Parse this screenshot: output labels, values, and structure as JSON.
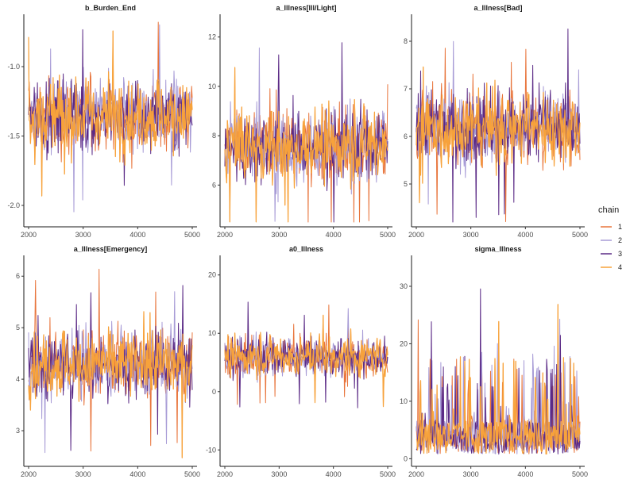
{
  "chart_data": [
    {
      "type": "line",
      "title": "b_Burden_End",
      "xlim": [
        2000,
        5000
      ],
      "ylim": [
        -2.12,
        -0.68
      ],
      "x_ticks": [
        2000,
        3000,
        4000,
        5000
      ],
      "y_ticks": [
        -2.0,
        -1.5,
        -1.0
      ],
      "y_tick_labels": [
        "-2.0",
        "-1.5",
        "-1.0"
      ],
      "band": {
        "center": -1.35,
        "spread": 0.22
      },
      "series": [
        {
          "name": "1",
          "color": "#e8743b"
        },
        {
          "name": "2",
          "color": "#a79bd6"
        },
        {
          "name": "3",
          "color": "#5b2a86"
        },
        {
          "name": "4",
          "color": "#f7a23b"
        }
      ]
    },
    {
      "type": "line",
      "title": "a_Illness[Ill/Light]",
      "xlim": [
        2000,
        5000
      ],
      "ylim": [
        4.5,
        12.6
      ],
      "x_ticks": [
        2000,
        3000,
        4000,
        5000
      ],
      "y_ticks": [
        6,
        8,
        10,
        12
      ],
      "y_tick_labels": [
        "6",
        "8",
        "10",
        "12"
      ],
      "band": {
        "center": 7.6,
        "spread": 1.25
      },
      "series": [
        {
          "name": "1",
          "color": "#e8743b"
        },
        {
          "name": "2",
          "color": "#a79bd6"
        },
        {
          "name": "3",
          "color": "#5b2a86"
        },
        {
          "name": "4",
          "color": "#f7a23b"
        }
      ]
    },
    {
      "type": "line",
      "title": "a_Illness[Bad]",
      "xlim": [
        2000,
        5000
      ],
      "ylim": [
        4.2,
        8.4
      ],
      "x_ticks": [
        2000,
        3000,
        4000,
        5000
      ],
      "y_ticks": [
        5,
        6,
        7,
        8
      ],
      "y_tick_labels": [
        "5",
        "6",
        "7",
        "8"
      ],
      "band": {
        "center": 6.2,
        "spread": 0.65
      },
      "series": [
        {
          "name": "1",
          "color": "#e8743b"
        },
        {
          "name": "2",
          "color": "#a79bd6"
        },
        {
          "name": "3",
          "color": "#5b2a86"
        },
        {
          "name": "4",
          "color": "#f7a23b"
        }
      ]
    },
    {
      "type": "line",
      "title": "a_Illness[Emergency]",
      "xlim": [
        2000,
        5000
      ],
      "ylim": [
        2.4,
        6.25
      ],
      "x_ticks": [
        2000,
        3000,
        4000,
        5000
      ],
      "y_ticks": [
        3,
        4,
        5,
        6
      ],
      "y_tick_labels": [
        "3",
        "4",
        "5",
        "6"
      ],
      "band": {
        "center": 4.3,
        "spread": 0.55
      },
      "series": [
        {
          "name": "1",
          "color": "#e8743b"
        },
        {
          "name": "2",
          "color": "#a79bd6"
        },
        {
          "name": "3",
          "color": "#5b2a86"
        },
        {
          "name": "4",
          "color": "#f7a23b"
        }
      ]
    },
    {
      "type": "line",
      "title": "a0_Illness",
      "xlim": [
        2000,
        5000
      ],
      "ylim": [
        -12,
        22
      ],
      "x_ticks": [
        2000,
        3000,
        4000,
        5000
      ],
      "y_ticks": [
        -10,
        0,
        10,
        20
      ],
      "y_tick_labels": [
        "-10",
        "0",
        "10",
        "20"
      ],
      "band": {
        "center": 6,
        "spread": 2.8
      },
      "series": [
        {
          "name": "1",
          "color": "#e8743b"
        },
        {
          "name": "2",
          "color": "#a79bd6"
        },
        {
          "name": "3",
          "color": "#5b2a86"
        },
        {
          "name": "4",
          "color": "#f7a23b"
        }
      ]
    },
    {
      "type": "line",
      "title": "sigma_Illness",
      "xlim": [
        2000,
        5000
      ],
      "ylim": [
        -0.5,
        34
      ],
      "x_ticks": [
        2000,
        3000,
        4000,
        5000
      ],
      "y_ticks": [
        0,
        10,
        20,
        30
      ],
      "y_tick_labels": [
        "0",
        "10",
        "20",
        "30"
      ],
      "band": {
        "center": 3.5,
        "spread": 3.0
      },
      "series": [
        {
          "name": "1",
          "color": "#e8743b"
        },
        {
          "name": "2",
          "color": "#a79bd6"
        },
        {
          "name": "3",
          "color": "#5b2a86"
        },
        {
          "name": "4",
          "color": "#f7a23b"
        }
      ]
    }
  ],
  "legend": {
    "title": "chain",
    "entries": [
      {
        "label": "1",
        "color": "#e8743b"
      },
      {
        "label": "2",
        "color": "#a79bd6"
      },
      {
        "label": "3",
        "color": "#5b2a86"
      },
      {
        "label": "4",
        "color": "#f7a23b"
      }
    ],
    "position": "right"
  }
}
